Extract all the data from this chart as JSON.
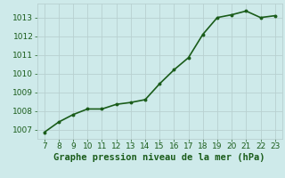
{
  "x": [
    7,
    8,
    9,
    10,
    11,
    12,
    13,
    14,
    15,
    16,
    17,
    18,
    19,
    20,
    21,
    22,
    23
  ],
  "y": [
    1006.85,
    1007.4,
    1007.8,
    1008.1,
    1008.1,
    1008.35,
    1008.45,
    1008.6,
    1009.45,
    1010.2,
    1010.85,
    1012.1,
    1013.0,
    1013.15,
    1013.35,
    1013.0,
    1013.1
  ],
  "line_color": "#1a5c1a",
  "marker_color": "#1a5c1a",
  "bg_color": "#ceeaea",
  "grid_color": "#b8d0d0",
  "xlabel": "Graphe pression niveau de la mer (hPa)",
  "xlabel_color": "#1a5c1a",
  "ylabel_ticks": [
    1007,
    1008,
    1009,
    1010,
    1011,
    1012,
    1013
  ],
  "xlim": [
    6.5,
    23.5
  ],
  "ylim": [
    1006.5,
    1013.75
  ],
  "xticks": [
    7,
    8,
    9,
    10,
    11,
    12,
    13,
    14,
    15,
    16,
    17,
    18,
    19,
    20,
    21,
    22,
    23
  ],
  "tick_color": "#1a5c1a",
  "tick_fontsize": 6.5,
  "xlabel_fontsize": 7.5,
  "line_width": 1.2,
  "marker_size": 4
}
